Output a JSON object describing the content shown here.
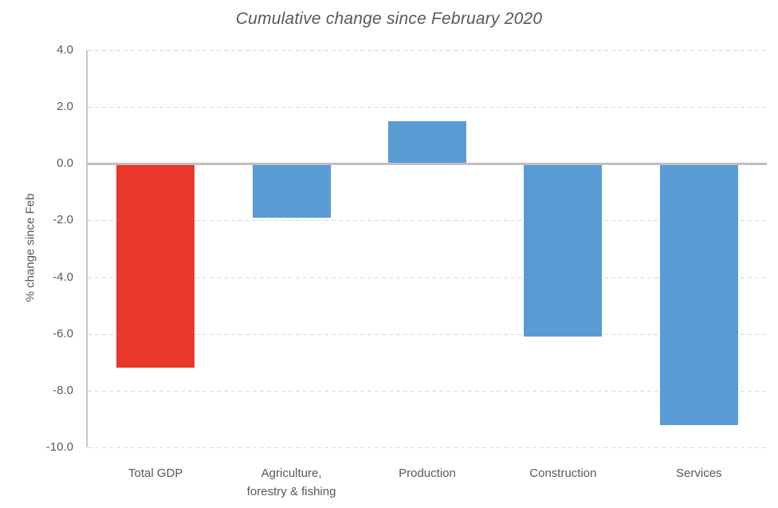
{
  "chart_data": {
    "type": "bar",
    "title": "Cumulative change since February 2020",
    "ylabel": "% change since Feb",
    "xlabel": "",
    "categories": [
      "Total GDP",
      "Agriculture,\nforestry & fishing",
      "Production",
      "Construction",
      "Services"
    ],
    "values": [
      -7.2,
      -1.9,
      1.5,
      -6.1,
      -9.2
    ],
    "bar_colors": [
      "#e8382b",
      "#5b9bd5",
      "#5b9bd5",
      "#5b9bd5",
      "#5b9bd5"
    ],
    "ylim": [
      -10.0,
      4.0
    ],
    "ytick_step": 2.0,
    "ytick_labels": [
      "4.0",
      "2.0",
      "0.0",
      "-2.0",
      "-4.0",
      "-6.0",
      "-8.0",
      "-10.0"
    ],
    "grid": "horizontal-dashed",
    "legend": "none",
    "colors": {
      "highlight_bar": "#e8382b",
      "default_bar": "#5b9bd5",
      "text": "#595959",
      "gridline": "#d9d9d9",
      "zero_line": "#bfbfbf",
      "background": "#ffffff"
    }
  }
}
